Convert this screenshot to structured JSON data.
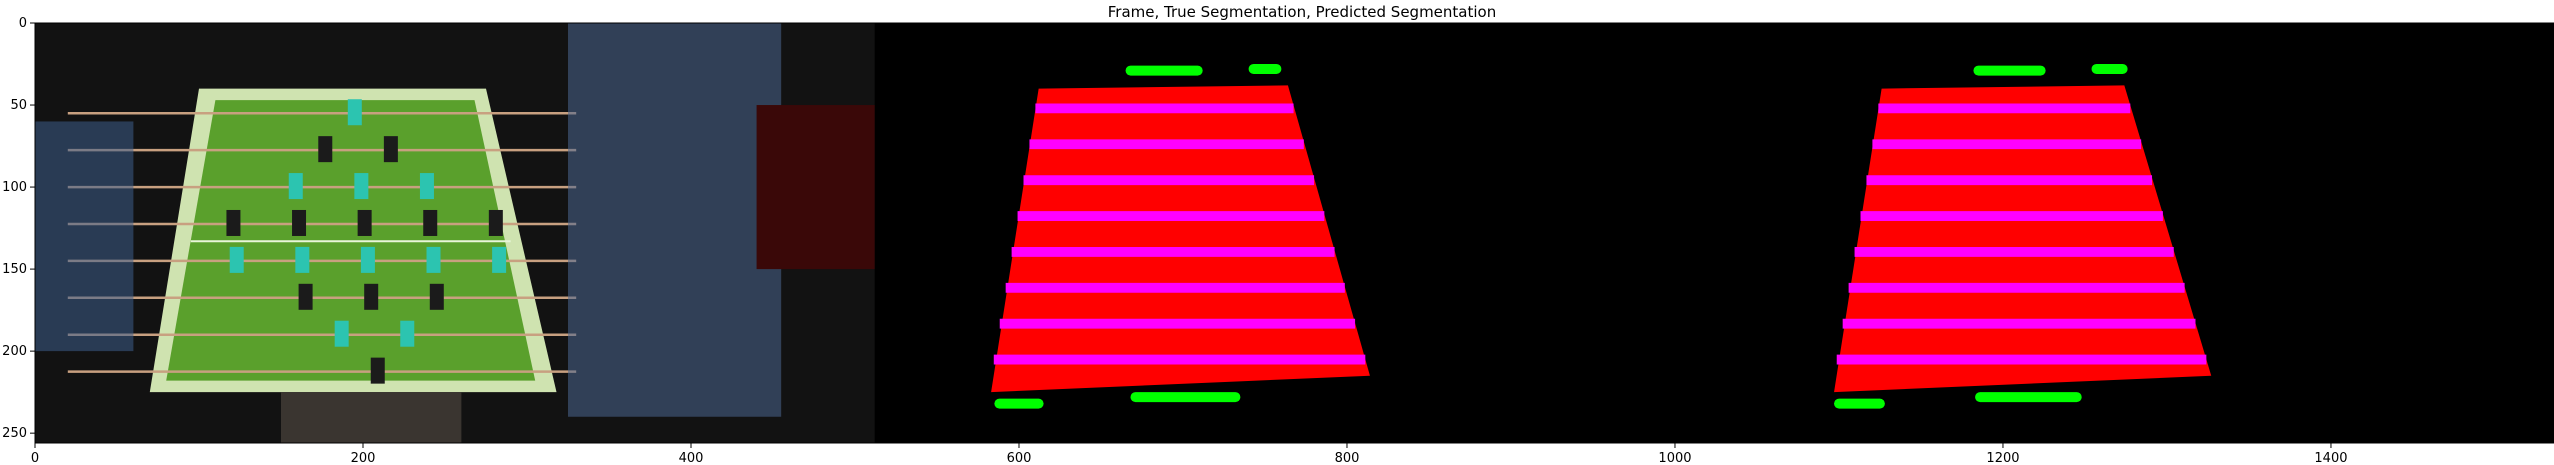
{
  "chart_data": {
    "type": "image",
    "title": "Frame, True Segmentation, Predicted Segmentation",
    "xlabel": "",
    "ylabel": "",
    "xlim": [
      0,
      1536
    ],
    "ylim": [
      256,
      0
    ],
    "xticks": [
      0,
      200,
      400,
      600,
      800,
      1000,
      1200,
      1400
    ],
    "yticks": [
      0,
      50,
      100,
      150,
      200,
      250
    ],
    "panels": [
      "Frame",
      "True Segmentation",
      "Predicted Segmentation"
    ],
    "panel_width": 512,
    "image_height": 256,
    "colors": {
      "table": "#ff0000",
      "rods": "#ff00ff",
      "goal_markers": "#00ff00",
      "background": "#000000",
      "pitch": "#5aa02c"
    },
    "segments": {
      "true_table": [
        [
          612,
          40
        ],
        [
          764,
          38
        ],
        [
          814,
          215
        ],
        [
          583,
          225
        ]
      ],
      "pred_table": [
        [
          1126,
          40
        ],
        [
          1274,
          38
        ],
        [
          1327,
          215
        ],
        [
          1097,
          225
        ]
      ],
      "true_markers": [
        {
          "x": [
            665,
            712
          ],
          "y": 29
        },
        {
          "x": [
            740,
            760
          ],
          "y": 28
        },
        {
          "x": [
            585,
            615
          ],
          "y": 232
        },
        {
          "x": [
            668,
            735
          ],
          "y": 228
        }
      ],
      "pred_markers": [
        {
          "x": [
            1182,
            1226
          ],
          "y": 29
        },
        {
          "x": [
            1254,
            1276
          ],
          "y": 28
        },
        {
          "x": [
            1097,
            1128
          ],
          "y": 232
        },
        {
          "x": [
            1183,
            1248
          ],
          "y": 228
        }
      ],
      "rod_count": 8
    }
  }
}
